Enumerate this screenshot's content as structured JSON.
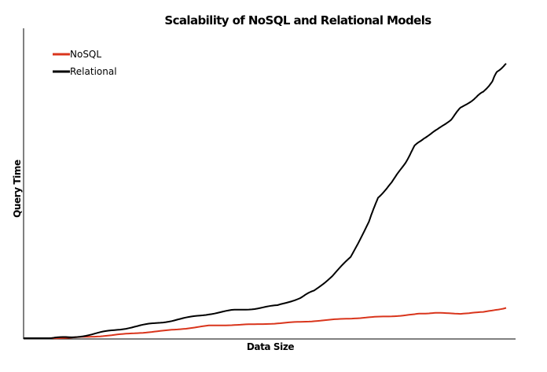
{
  "chart_data": {
    "type": "line",
    "title": "Scalability of NoSQL and Relational Models",
    "xlabel": "Data Size",
    "ylabel": "Query Time",
    "xlim": [
      0,
      100
    ],
    "ylim": [
      0,
      100
    ],
    "grid": false,
    "legend_position": "top-left",
    "series": [
      {
        "name": "NoSQL",
        "color": "#d9351c",
        "x": [
          0,
          5,
          10,
          15,
          20,
          25,
          30,
          35,
          40,
          45,
          50,
          55,
          60,
          65,
          70,
          75,
          80,
          82,
          85,
          90,
          95,
          100
        ],
        "y": [
          0,
          0.2,
          0.6,
          1.3,
          2.0,
          2.7,
          3.6,
          4.6,
          4.9,
          5.1,
          5.5,
          6.0,
          6.6,
          7.2,
          7.7,
          8.1,
          8.8,
          9.2,
          9.3,
          9.1,
          9.6,
          11.2
        ]
      },
      {
        "name": "Relational",
        "color": "#000000",
        "x": [
          0,
          5,
          10,
          15,
          20,
          25,
          30,
          35,
          40,
          45,
          50,
          55,
          58,
          62,
          66,
          70,
          72,
          75,
          78,
          80,
          82,
          85,
          88,
          90,
          93,
          95,
          97,
          98,
          100
        ],
        "y": [
          0,
          0.3,
          1.6,
          3.2,
          4.6,
          6.0,
          7.4,
          9.0,
          10.2,
          11.0,
          12.0,
          15.0,
          17.5,
          23.0,
          30.0,
          43.0,
          52.0,
          57.5,
          65.0,
          71.0,
          74.0,
          77.0,
          81.0,
          85.0,
          88.5,
          91.0,
          95.0,
          98.5,
          101.5
        ]
      }
    ]
  }
}
